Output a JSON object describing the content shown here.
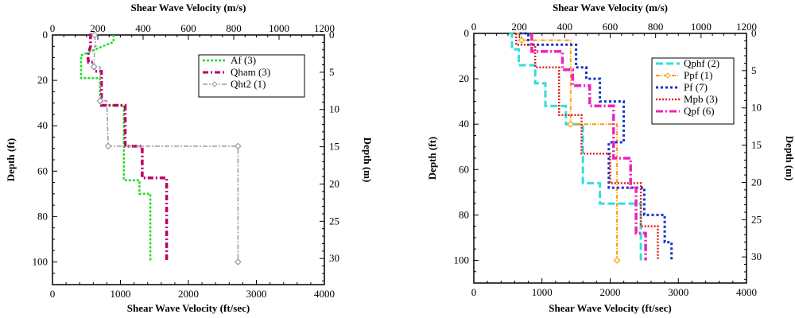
{
  "chart_data": [
    {
      "type": "line",
      "title": "",
      "top_xlabel": "Shear Wave Velocity (m/s)",
      "bottom_xlabel": "Shear Wave Velocity (ft/sec)",
      "left_ylabel": "Depth (ft)",
      "right_ylabel": "Depth (m)",
      "xlim_top_ms": [
        0,
        1200
      ],
      "xlim_bottom_fts": [
        0,
        4000
      ],
      "ylim_ft": [
        0,
        110
      ],
      "ylim_m": [
        0,
        33.5
      ],
      "y_inverted": true,
      "top_ticks": [
        "0",
        "200",
        "400",
        "600",
        "800",
        "1000",
        "1200"
      ],
      "bottom_ticks": [
        "0",
        "1000",
        "2000",
        "3000",
        "4000"
      ],
      "left_ticks": [
        "0",
        "20",
        "40",
        "60",
        "80",
        "100"
      ],
      "right_ticks": [
        "0",
        "5",
        "10",
        "15",
        "20",
        "25",
        "30"
      ],
      "legend_position": "top-right",
      "series": [
        {
          "name": "Af (3)",
          "color": "#22dd22",
          "dash": "3,2",
          "width": 2.5,
          "marker": "none",
          "x": [
            900,
            900,
            420,
            420,
            700,
            700,
            1000,
            1000,
            1050,
            1050,
            1280,
            1280,
            1440,
            1440
          ],
          "y": [
            0,
            3,
            9,
            19,
            19,
            31,
            31,
            31,
            31,
            64,
            64,
            70,
            70,
            100
          ]
        },
        {
          "name": "Qham (3)",
          "color": "#bb0066",
          "dash": "7,3,2,3",
          "width": 3.5,
          "marker": "none",
          "x": [
            540,
            560,
            560,
            520,
            530,
            600,
            620,
            720,
            720,
            1070,
            1070,
            1320,
            1320,
            1680,
            1680
          ],
          "y": [
            0,
            0,
            5,
            9,
            12,
            12,
            16,
            16,
            31,
            31,
            49,
            49,
            63,
            63,
            100
          ]
        },
        {
          "name": "Qht2 (1)",
          "color": "#999999",
          "dash": "6,2,2,2",
          "width": 1.5,
          "marker": "diamond",
          "x": [
            620,
            640,
            620,
            610,
            700,
            710,
            800,
            820,
            820,
            2730,
            2730
          ],
          "y": [
            0,
            5,
            5,
            14,
            14,
            29,
            29,
            49,
            49,
            49,
            100
          ],
          "marker_points": [
            [
              620,
              0
            ],
            [
              610,
              14
            ],
            [
              700,
              29
            ],
            [
              820,
              49
            ],
            [
              2730,
              49
            ],
            [
              2730,
              100
            ]
          ]
        }
      ]
    },
    {
      "type": "line",
      "title": "",
      "top_xlabel": "Shear Wave Velocity (m/s)",
      "bottom_xlabel": "Shear Wave Velocity (ft/sec)",
      "left_ylabel": "Depth (ft)",
      "right_ylabel": "Depth (m)",
      "xlim_top_ms": [
        0,
        1200
      ],
      "xlim_bottom_fts": [
        0,
        4000
      ],
      "ylim_ft": [
        0,
        110
      ],
      "ylim_m": [
        0,
        33.5
      ],
      "y_inverted": true,
      "top_ticks": [
        "0",
        "200",
        "400",
        "600",
        "800",
        "1000",
        "1200"
      ],
      "bottom_ticks": [
        "0",
        "1000",
        "2000",
        "3000",
        "4000"
      ],
      "left_ticks": [
        "0",
        "20",
        "40",
        "60",
        "80",
        "100"
      ],
      "right_ticks": [
        "0",
        "5",
        "10",
        "15",
        "20",
        "25",
        "30"
      ],
      "legend_position": "top-right",
      "series": [
        {
          "name": "Qphf (2)",
          "color": "#33dddd",
          "dash": "9,4",
          "width": 3,
          "marker": "none",
          "x": [
            520,
            560,
            560,
            660,
            660,
            900,
            900,
            1050,
            1050,
            1350,
            1350,
            1600,
            1600,
            1850,
            1850,
            2450,
            2450
          ],
          "y": [
            0,
            0,
            7,
            7,
            14,
            14,
            22,
            22,
            32,
            32,
            40,
            40,
            66,
            66,
            75,
            75,
            100
          ]
        },
        {
          "name": "Ppf (1)",
          "color": "#ff9900",
          "dash": "5,2,1,2",
          "width": 2,
          "marker": "diamond",
          "x": [
            620,
            700,
            700,
            1420,
            1420,
            2100,
            2100
          ],
          "y": [
            0,
            0,
            3,
            3,
            40,
            40,
            100
          ],
          "marker_points": [
            [
              700,
              3
            ],
            [
              1420,
              40
            ],
            [
              2100,
              100
            ]
          ]
        },
        {
          "name": "Pf (7)",
          "color": "#1133cc",
          "dash": "3,3",
          "width": 3,
          "marker": "none",
          "x": [
            670,
            800,
            800,
            1500,
            1500,
            1650,
            1650,
            1850,
            1850,
            2200,
            2200,
            1980,
            1980,
            2500,
            2500,
            2800,
            2800,
            2900,
            2900
          ],
          "y": [
            0,
            0,
            5,
            5,
            15,
            15,
            20,
            20,
            30,
            30,
            48,
            48,
            68,
            68,
            80,
            80,
            92,
            92,
            100
          ]
        },
        {
          "name": "Mpb (3)",
          "color": "#dd2222",
          "dash": "2,2",
          "width": 2.5,
          "marker": "none",
          "x": [
            620,
            620,
            900,
            900,
            1250,
            1250,
            1580,
            1580,
            2000,
            2000,
            2450,
            2450,
            2700,
            2700
          ],
          "y": [
            0,
            5,
            5,
            15,
            15,
            36,
            36,
            53,
            53,
            66,
            66,
            85,
            85,
            100
          ]
        },
        {
          "name": "Qpf (6)",
          "color": "#ee22bb",
          "dash": "9,3,2,3",
          "width": 3.5,
          "marker": "none",
          "x": [
            850,
            850,
            1300,
            1300,
            1450,
            1450,
            1700,
            1700,
            2050,
            2050,
            2300,
            2300,
            2380,
            2380,
            2520,
            2520
          ],
          "y": [
            0,
            8,
            8,
            16,
            16,
            23,
            23,
            32,
            32,
            55,
            55,
            68,
            68,
            88,
            88,
            100
          ]
        }
      ]
    }
  ]
}
